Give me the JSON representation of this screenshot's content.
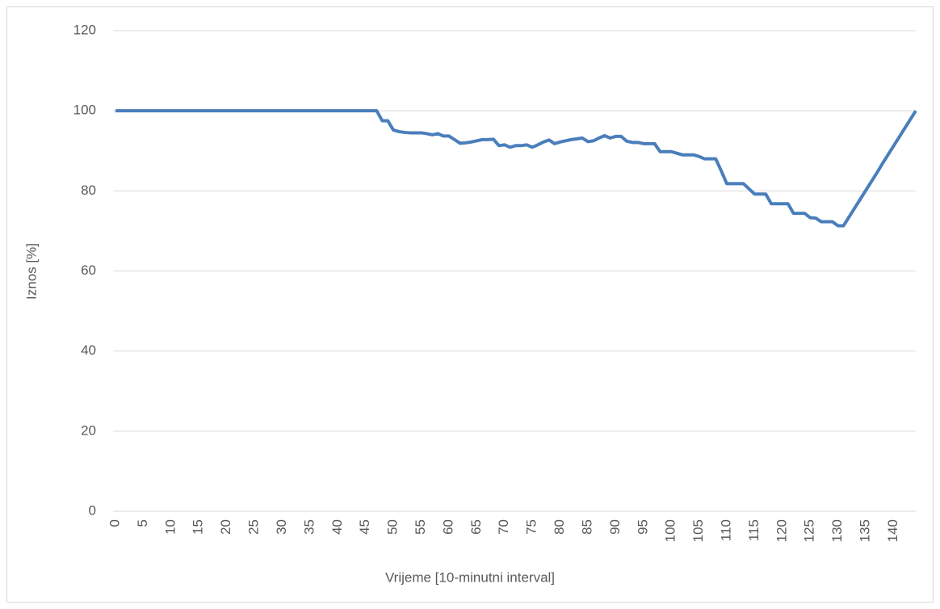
{
  "chart_data": {
    "type": "line",
    "xlabel": "Vrijeme [10-minutni interval]",
    "ylabel": "Iznos [%]",
    "x": [
      0,
      1,
      2,
      3,
      4,
      5,
      6,
      7,
      8,
      9,
      10,
      11,
      12,
      13,
      14,
      15,
      16,
      17,
      18,
      19,
      20,
      21,
      22,
      23,
      24,
      25,
      26,
      27,
      28,
      29,
      30,
      31,
      32,
      33,
      34,
      35,
      36,
      37,
      38,
      39,
      40,
      41,
      42,
      43,
      44,
      45,
      46,
      47,
      48,
      49,
      50,
      51,
      52,
      53,
      54,
      55,
      56,
      57,
      58,
      59,
      60,
      61,
      62,
      63,
      64,
      65,
      66,
      67,
      68,
      69,
      70,
      71,
      72,
      73,
      74,
      75,
      76,
      77,
      78,
      79,
      80,
      81,
      82,
      83,
      84,
      85,
      86,
      87,
      88,
      89,
      90,
      91,
      92,
      93,
      94,
      95,
      96,
      97,
      98,
      99,
      100,
      101,
      102,
      103,
      104,
      105,
      106,
      107,
      108,
      109,
      110,
      111,
      112,
      113,
      114,
      115,
      116,
      117,
      118,
      119,
      120,
      121,
      122,
      123,
      124,
      125,
      126,
      127,
      128,
      129,
      130,
      131,
      132,
      133,
      134,
      135,
      136,
      137,
      138,
      139,
      140,
      141,
      142,
      143,
      144
    ],
    "values": [
      100,
      100,
      100,
      100,
      100,
      100,
      100,
      100,
      100,
      100,
      100,
      100,
      100,
      100,
      100,
      100,
      100,
      100,
      100,
      100,
      100,
      100,
      100,
      100,
      100,
      100,
      100,
      100,
      100,
      100,
      100,
      100,
      100,
      100,
      100,
      100,
      100,
      100,
      100,
      100,
      100,
      100,
      100,
      100,
      100,
      100,
      100,
      100,
      97.5,
      97.5,
      95.2,
      94.8,
      94.6,
      94.5,
      94.5,
      94.5,
      94.3,
      94,
      94.3,
      93.7,
      93.7,
      92.8,
      91.9,
      92,
      92.2,
      92.5,
      92.8,
      92.8,
      92.9,
      91.3,
      91.5,
      90.9,
      91.3,
      91.3,
      91.5,
      90.9,
      91.5,
      92.2,
      92.7,
      91.8,
      92.2,
      92.5,
      92.8,
      93,
      93.2,
      92.3,
      92.5,
      93.2,
      93.8,
      93.2,
      93.6,
      93.6,
      92.4,
      92.1,
      92.1,
      91.8,
      91.8,
      91.8,
      89.8,
      89.8,
      89.8,
      89.4,
      89,
      89,
      89,
      88.6,
      88,
      88,
      88,
      85,
      81.8,
      81.8,
      81.8,
      81.8,
      80.5,
      79.2,
      79.2,
      79.2,
      76.8,
      76.8,
      76.8,
      76.8,
      74.4,
      74.4,
      74.4,
      73.3,
      73.2,
      72.3,
      72.3,
      72.3,
      71.3,
      71.3,
      73.5,
      75.7,
      77.9,
      80.1,
      82.3,
      84.5,
      86.8,
      89,
      91.2,
      93.4,
      95.6,
      97.8,
      100
    ],
    "color": "#4a7ebb",
    "xlim": [
      0,
      144
    ],
    "ylim": [
      0,
      120
    ],
    "xticks": [
      0,
      5,
      10,
      15,
      20,
      25,
      30,
      35,
      40,
      45,
      50,
      55,
      60,
      65,
      70,
      75,
      80,
      85,
      90,
      95,
      100,
      105,
      110,
      115,
      120,
      125,
      130,
      135,
      140
    ],
    "yticks": [
      0,
      20,
      40,
      60,
      80,
      100,
      120
    ],
    "grid": true
  }
}
